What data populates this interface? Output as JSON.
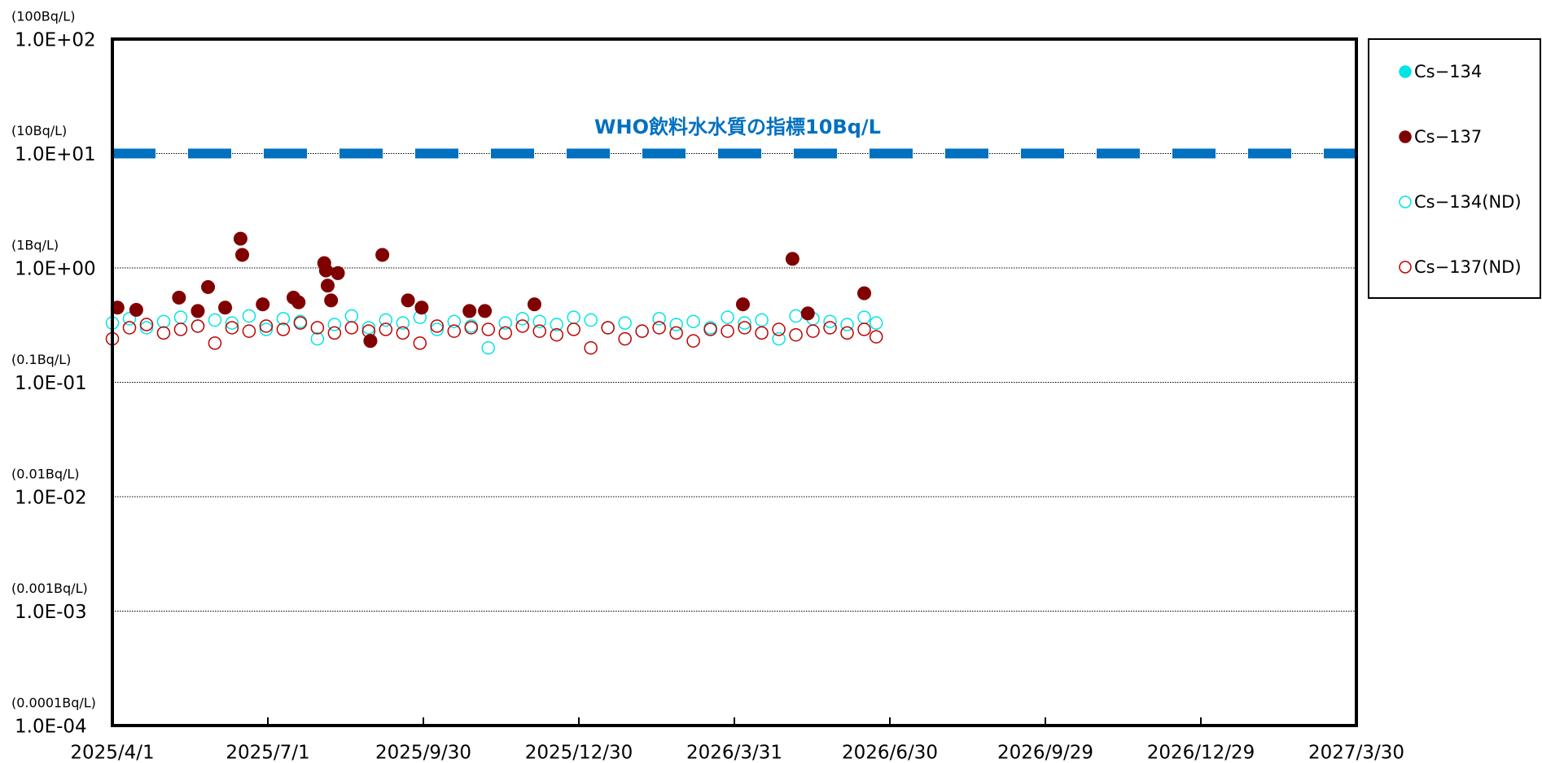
{
  "chart_data": {
    "type": "scatter",
    "log_y": true,
    "grid": true,
    "legend": "right",
    "xlim": [
      "2025/4/1",
      "2027/3/30"
    ],
    "xticks": [
      "2025/4/1",
      "2025/7/1",
      "2025/9/30",
      "2025/12/30",
      "2026/3/31",
      "2026/6/30",
      "2026/9/29",
      "2026/12/29",
      "2027/3/30"
    ],
    "ylim": [
      0.0001,
      100
    ],
    "yticks": [
      {
        "value": 0.0001,
        "label": "1.0E-04"
      },
      {
        "value": 0.001,
        "label": "1.0E-03"
      },
      {
        "value": 0.01,
        "label": "1.0E-02"
      },
      {
        "value": 0.1,
        "label": "1.0E-01"
      },
      {
        "value": 1,
        "label": "1.0E+00"
      },
      {
        "value": 10,
        "label": "1.0E+01"
      },
      {
        "value": 100,
        "label": "1.0E+02"
      }
    ],
    "ytick_units": [
      "(0.0001Bq/L)",
      "(0.001Bq/L)",
      "(0.01Bq/L)",
      "(0.1Bq/L)",
      "(1Bq/L)",
      "(10Bq/L)",
      "(100Bq/L)"
    ],
    "reference": {
      "value": 10,
      "label": "WHO飲料水水質の指標10Bq/L",
      "color": "#0070c0"
    },
    "series": [
      {
        "name": "Cs−134",
        "color": "#00e5e5",
        "marker": "filled",
        "x": [],
        "values": []
      },
      {
        "name": "Cs−137",
        "color": "#800000",
        "marker": "filled",
        "x": [
          "2025/4/4",
          "2025/4/15",
          "2025/5/10",
          "2025/5/21",
          "2025/5/27",
          "2025/6/6",
          "2025/6/15",
          "2025/6/16",
          "2025/6/28",
          "2025/7/16",
          "2025/7/19",
          "2025/8/3",
          "2025/8/4",
          "2025/8/5",
          "2025/8/7",
          "2025/8/11",
          "2025/8/30",
          "2025/9/6",
          "2025/9/21",
          "2025/9/29",
          "2025/10/27",
          "2025/11/5",
          "2025/12/4",
          "2026/4/5",
          "2026/5/4",
          "2026/5/13",
          "2026/6/15"
        ],
        "values": [
          0.45,
          0.43,
          0.55,
          0.42,
          0.68,
          0.45,
          1.8,
          1.3,
          0.48,
          0.55,
          0.5,
          1.1,
          0.95,
          0.7,
          0.52,
          0.9,
          0.23,
          1.3,
          0.52,
          0.45,
          0.42,
          0.42,
          0.48,
          0.48,
          1.2,
          0.4,
          0.6
        ]
      },
      {
        "name": "Cs−134(ND)",
        "color": "#00e5e5",
        "marker": "open",
        "x": [
          "2025/4/1",
          "2025/4/11",
          "2025/4/21",
          "2025/5/1",
          "2025/5/11",
          "2025/5/21",
          "2025/5/31",
          "2025/6/10",
          "2025/6/20",
          "2025/6/30",
          "2025/7/10",
          "2025/7/20",
          "2025/7/30",
          "2025/8/9",
          "2025/8/19",
          "2025/8/29",
          "2025/9/8",
          "2025/9/18",
          "2025/9/28",
          "2025/10/8",
          "2025/10/18",
          "2025/10/28",
          "2025/11/7",
          "2025/11/17",
          "2025/11/27",
          "2025/12/7",
          "2025/12/17",
          "2025/12/27",
          "2026/1/6",
          "2026/1/16",
          "2026/1/26",
          "2026/2/5",
          "2026/2/15",
          "2026/2/25",
          "2026/3/7",
          "2026/3/17",
          "2026/3/27",
          "2026/4/6",
          "2026/4/16",
          "2026/4/26",
          "2026/5/6",
          "2026/5/16",
          "2026/5/26",
          "2026/6/5",
          "2026/6/15",
          "2026/6/22"
        ],
        "values": [
          0.33,
          0.36,
          0.3,
          0.34,
          0.37,
          0.31,
          0.35,
          0.33,
          0.38,
          0.29,
          0.36,
          0.34,
          0.24,
          0.32,
          0.38,
          0.3,
          0.35,
          0.33,
          0.37,
          0.29,
          0.34,
          0.31,
          0.2,
          0.33,
          0.36,
          0.34,
          0.32,
          0.37,
          0.35,
          0.3,
          0.33,
          0.28,
          0.36,
          0.32,
          0.34,
          0.3,
          0.37,
          0.33,
          0.35,
          0.24,
          0.38,
          0.36,
          0.34,
          0.32,
          0.37,
          0.33
        ]
      },
      {
        "name": "Cs−137(ND)",
        "color": "#c00000",
        "marker": "open",
        "x": [
          "2025/4/1",
          "2025/4/11",
          "2025/4/21",
          "2025/5/1",
          "2025/5/11",
          "2025/5/21",
          "2025/5/31",
          "2025/6/10",
          "2025/6/20",
          "2025/6/30",
          "2025/7/10",
          "2025/7/20",
          "2025/7/30",
          "2025/8/9",
          "2025/8/19",
          "2025/8/29",
          "2025/9/8",
          "2025/9/18",
          "2025/9/28",
          "2025/10/8",
          "2025/10/18",
          "2025/10/28",
          "2025/11/7",
          "2025/11/17",
          "2025/11/27",
          "2025/12/7",
          "2025/12/17",
          "2025/12/27",
          "2026/1/6",
          "2026/1/16",
          "2026/1/26",
          "2026/2/5",
          "2026/2/15",
          "2026/2/25",
          "2026/3/7",
          "2026/3/17",
          "2026/3/27",
          "2026/4/6",
          "2026/4/16",
          "2026/4/26",
          "2026/5/6",
          "2026/5/16",
          "2026/5/26",
          "2026/6/5",
          "2026/6/15",
          "2026/6/22"
        ],
        "values": [
          0.24,
          0.3,
          0.32,
          0.27,
          0.29,
          0.31,
          0.22,
          0.3,
          0.28,
          0.31,
          0.29,
          0.33,
          0.3,
          0.27,
          0.3,
          0.28,
          0.29,
          0.27,
          0.22,
          0.31,
          0.28,
          0.3,
          0.29,
          0.27,
          0.31,
          0.28,
          0.26,
          0.29,
          0.2,
          0.3,
          0.24,
          0.28,
          0.3,
          0.27,
          0.23,
          0.29,
          0.28,
          0.3,
          0.27,
          0.29,
          0.26,
          0.28,
          0.3,
          0.27,
          0.29,
          0.25
        ]
      }
    ]
  }
}
